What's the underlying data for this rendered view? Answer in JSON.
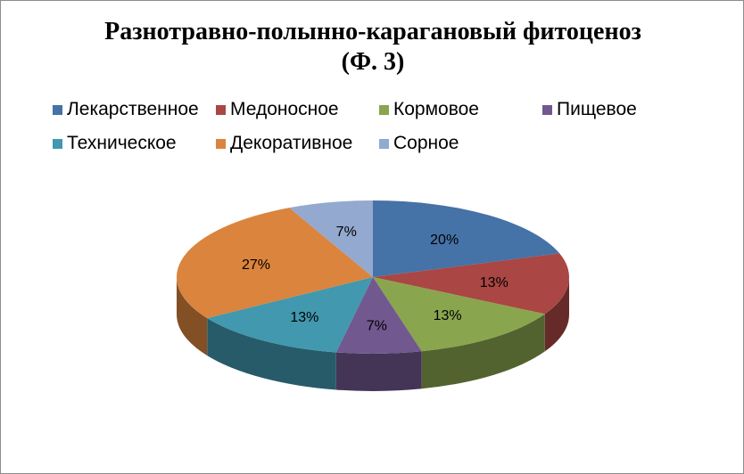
{
  "chart_data": {
    "type": "pie",
    "title_line1": "Разнотравно-полынно-карагановый фитоценоз",
    "title_line2": "(Ф. 3)",
    "legend_position": "top",
    "three_d": true,
    "slices": [
      {
        "label": "Лекарственное",
        "value": 20,
        "display": "20%",
        "color": "#4572A7"
      },
      {
        "label": "Медоносное",
        "value": 13,
        "display": "13%",
        "color": "#AA4643"
      },
      {
        "label": "Кормовое",
        "value": 13,
        "display": "13%",
        "color": "#89A54E"
      },
      {
        "label": "Пищевое",
        "value": 7,
        "display": "7%",
        "color": "#71588F"
      },
      {
        "label": "Техническое",
        "value": 13,
        "display": "13%",
        "color": "#4198AF"
      },
      {
        "label": "Декоративное",
        "value": 27,
        "display": "27%",
        "color": "#DB843D"
      },
      {
        "label": "Сорное",
        "value": 7,
        "display": "7%",
        "color": "#93A9CF"
      }
    ]
  }
}
